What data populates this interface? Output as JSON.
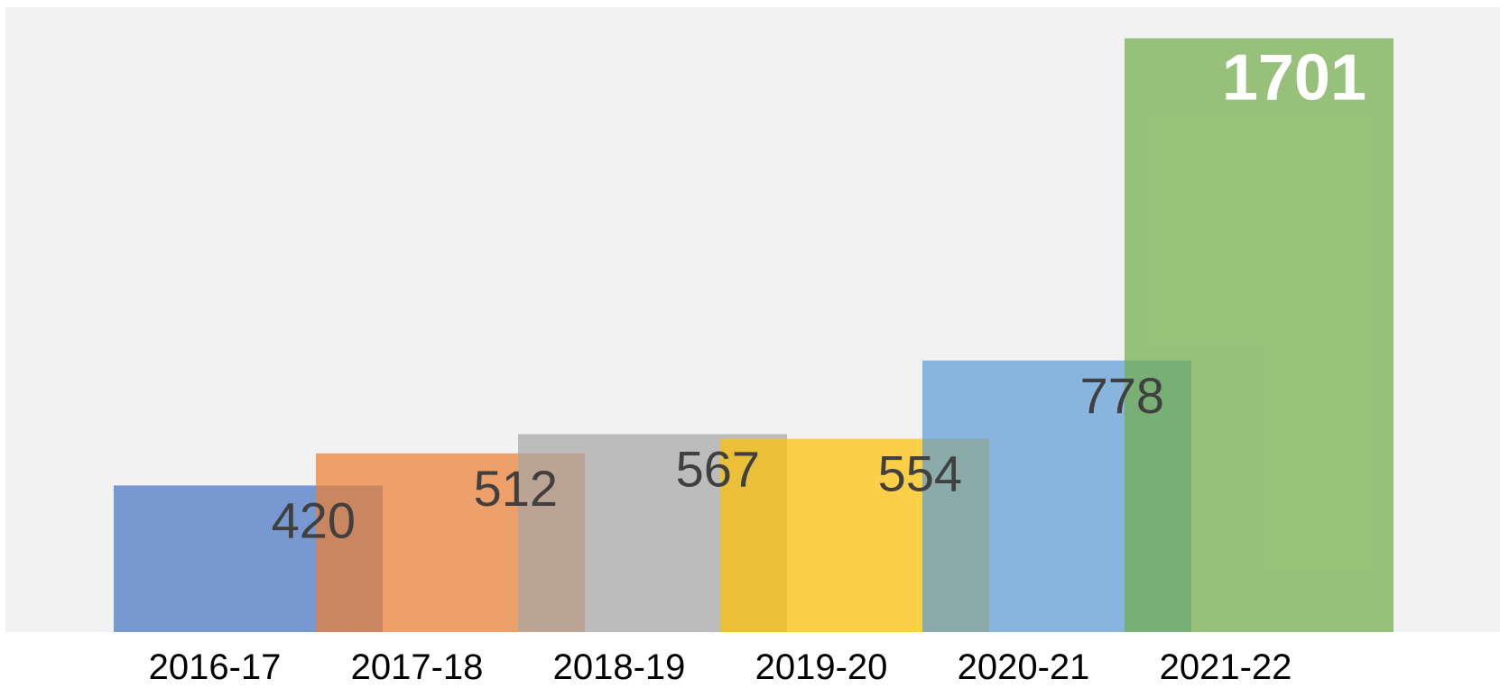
{
  "chart_data": {
    "type": "bar",
    "categories": [
      "2016-17",
      "2017-18",
      "2018-19",
      "2019-20",
      "2020-21",
      "2021-22"
    ],
    "values": [
      420,
      512,
      567,
      554,
      778,
      1701
    ],
    "title": "",
    "xlabel": "",
    "ylabel": "",
    "ylim": [
      0,
      1790
    ],
    "grid": false,
    "legend": "none",
    "colors": [
      "#4472C4",
      "#ED7D31",
      "#A5A5A5",
      "#FFC000",
      "#5B9BD5",
      "#70AD47"
    ],
    "bar_opacity": 0.7,
    "plot_background": "#F2F2F2",
    "label_color": "#404040",
    "highlight_label_color": "#FFFFFF"
  }
}
